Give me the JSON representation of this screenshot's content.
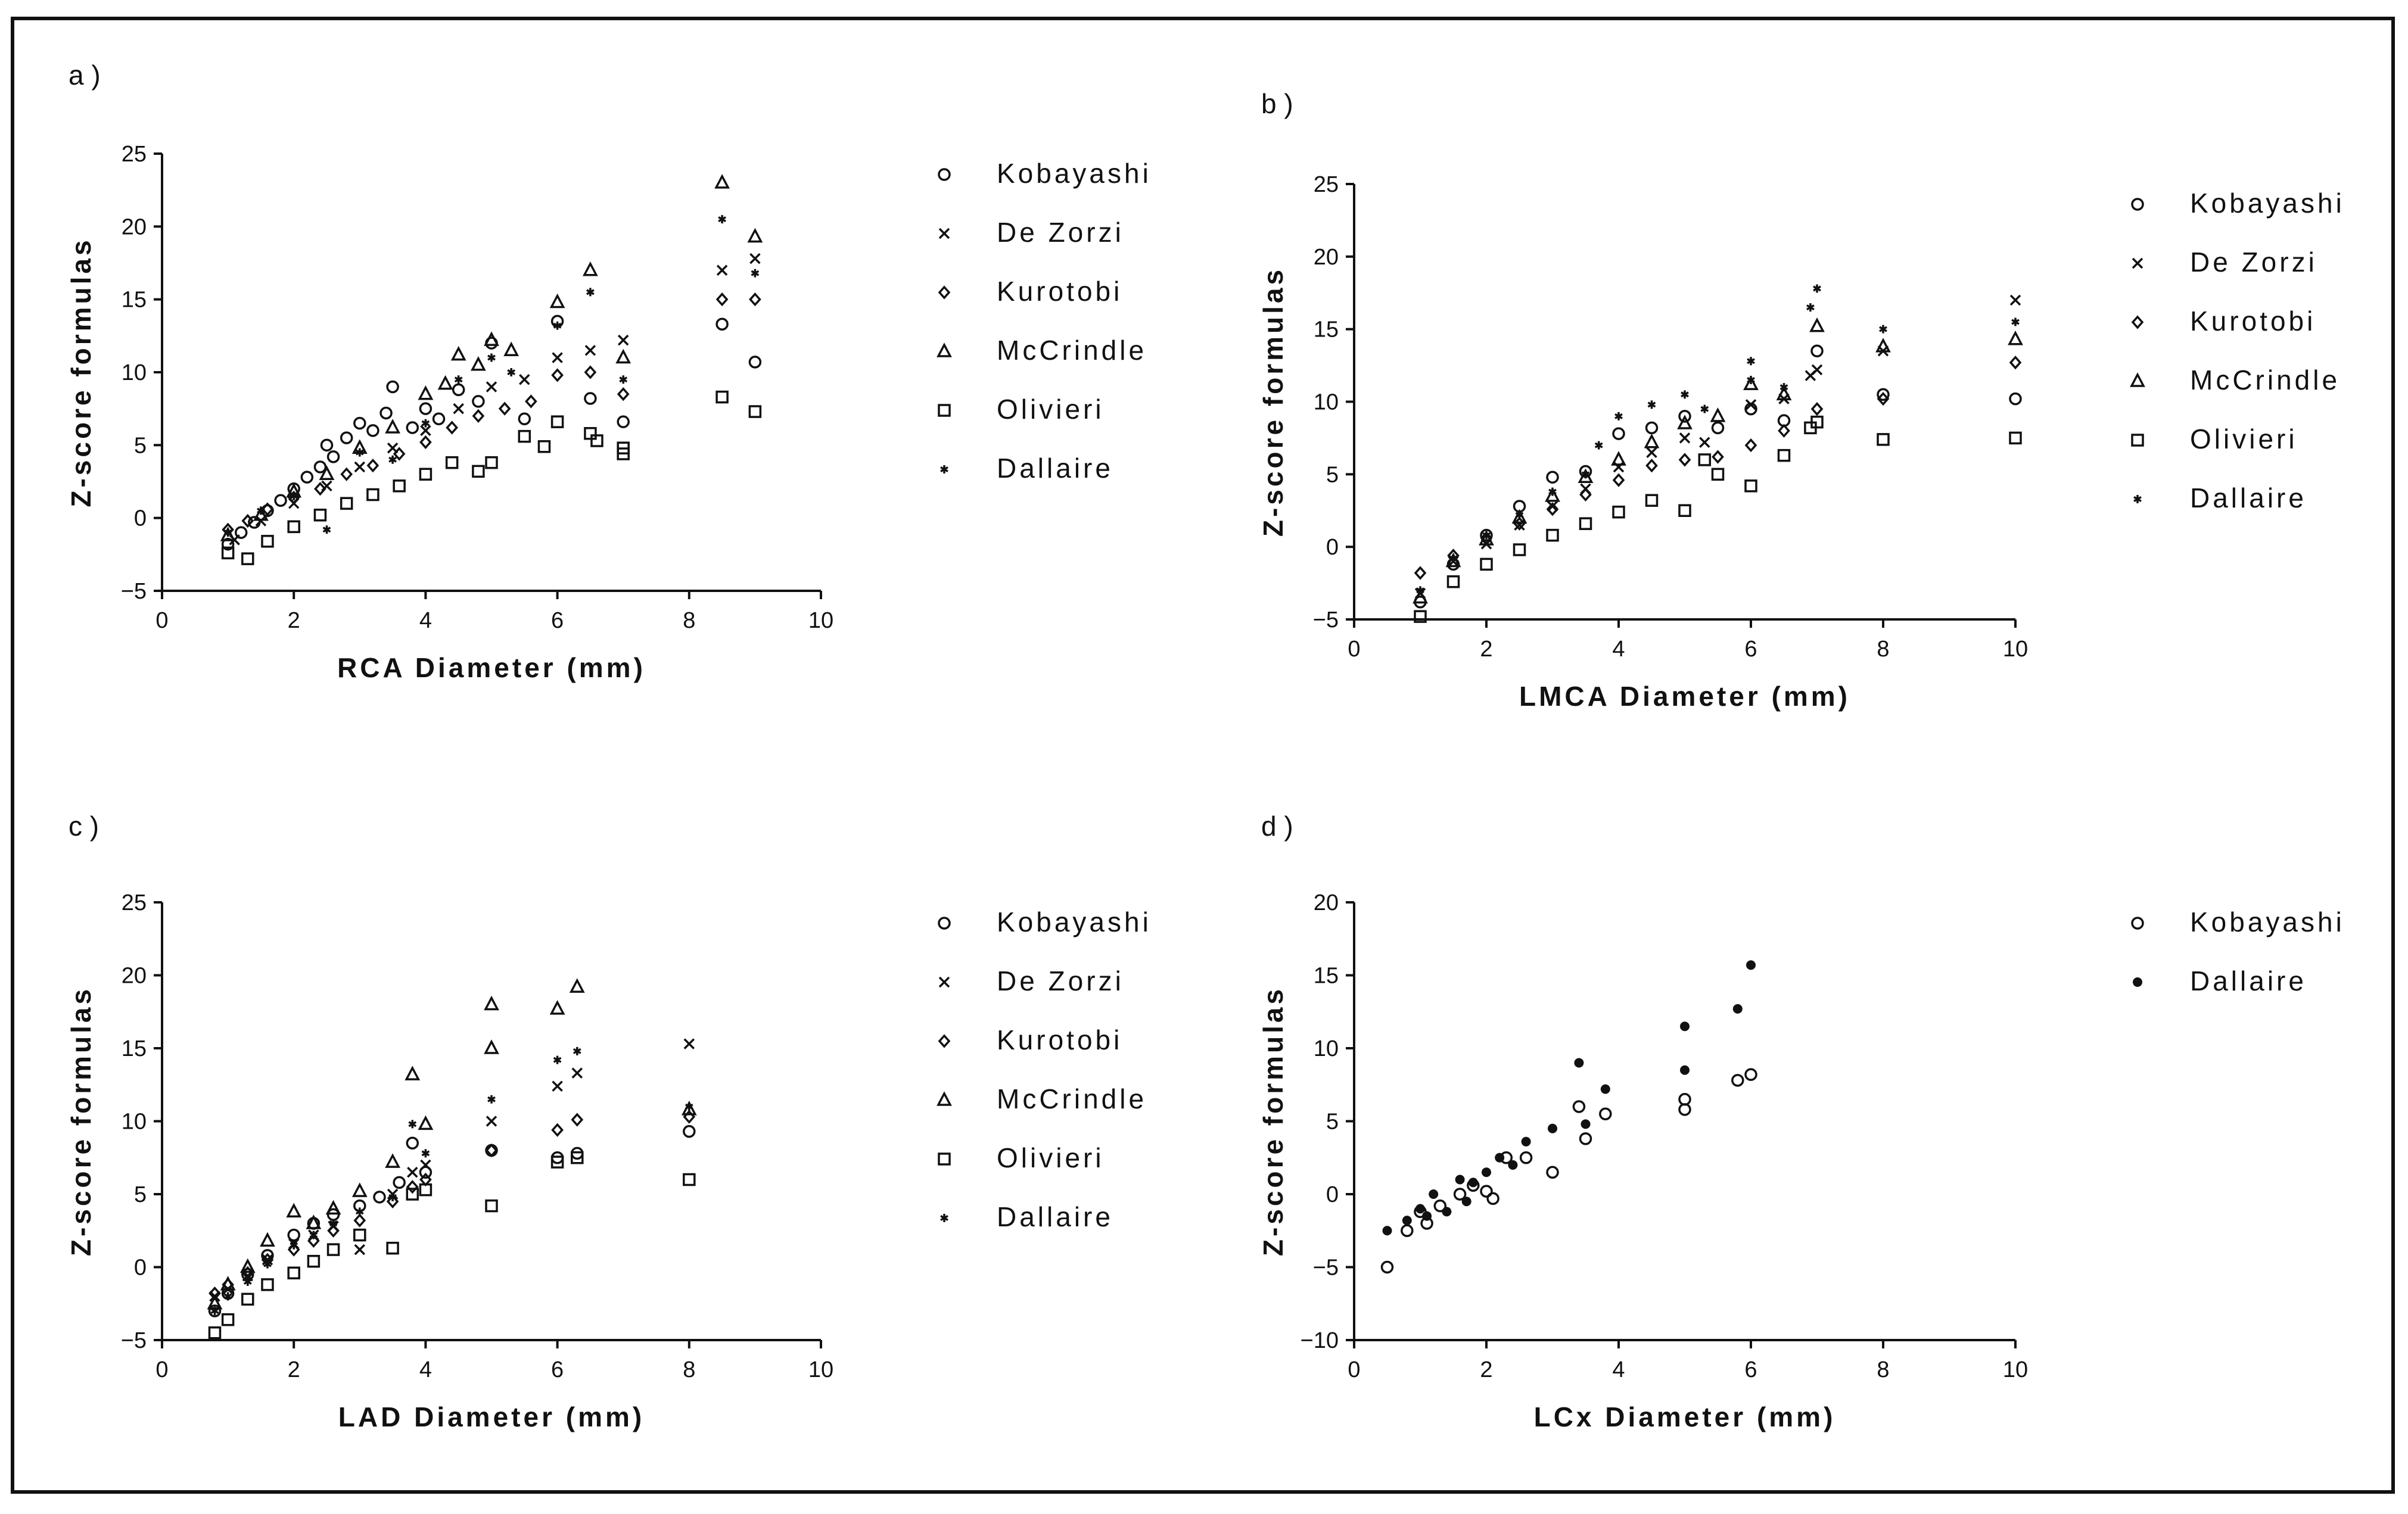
{
  "colors": {
    "background": "#ffffff",
    "ink": "#111111"
  },
  "chart_data": [
    {
      "id": "a",
      "panel_label": "a)",
      "type": "scatter",
      "xlabel": "RCA Diameter (mm)",
      "ylabel": "Z-score formulas",
      "xlim": [
        0,
        10
      ],
      "ylim": [
        -5,
        25
      ],
      "xticks": [
        0,
        2,
        4,
        6,
        8,
        10
      ],
      "yticks": [
        -5,
        0,
        5,
        10,
        15,
        20,
        25
      ],
      "grid": false,
      "legend_position": "right",
      "series": [
        {
          "name": "Kobayashi",
          "marker": "circle",
          "x": [
            1.0,
            1.2,
            1.4,
            1.6,
            1.8,
            2.0,
            2.2,
            2.4,
            2.5,
            2.6,
            2.8,
            3.0,
            3.2,
            3.4,
            3.5,
            3.8,
            4.0,
            4.2,
            4.5,
            4.8,
            5.0,
            5.5,
            6.0,
            6.5,
            7.0,
            8.5,
            9.0
          ],
          "y": [
            -1.8,
            -1.0,
            -0.3,
            0.5,
            1.2,
            2.0,
            2.8,
            3.5,
            5.0,
            4.2,
            5.5,
            6.5,
            6.0,
            7.2,
            9.0,
            6.2,
            7.5,
            6.8,
            8.8,
            8.0,
            12.0,
            6.8,
            13.5,
            8.2,
            6.6,
            13.3,
            10.7
          ]
        },
        {
          "name": "De Zorzi",
          "marker": "cross",
          "x": [
            1.1,
            1.5,
            2.0,
            2.5,
            3.0,
            3.5,
            4.0,
            4.5,
            5.0,
            5.5,
            6.0,
            6.5,
            7.0,
            8.5,
            9.0
          ],
          "y": [
            -1.5,
            -0.2,
            1.0,
            2.2,
            3.5,
            4.8,
            6.0,
            7.5,
            9.0,
            9.5,
            11.0,
            11.5,
            12.2,
            17.0,
            17.8
          ]
        },
        {
          "name": "Kurotobi",
          "marker": "diamond",
          "x": [
            1.0,
            1.3,
            1.6,
            2.0,
            2.4,
            2.8,
            3.2,
            3.6,
            4.0,
            4.4,
            4.8,
            5.2,
            5.6,
            6.0,
            6.5,
            7.0,
            8.5,
            9.0
          ],
          "y": [
            -0.8,
            -0.2,
            0.6,
            1.4,
            2.0,
            3.0,
            3.6,
            4.4,
            5.2,
            6.2,
            7.0,
            7.5,
            8.0,
            9.8,
            10.0,
            8.5,
            15.0,
            15.0
          ]
        },
        {
          "name": "McCrindle",
          "marker": "triangle",
          "x": [
            1.0,
            1.5,
            2.0,
            2.5,
            3.0,
            3.5,
            4.0,
            4.3,
            4.5,
            4.8,
            5.0,
            5.3,
            6.0,
            6.5,
            7.0,
            8.5,
            9.0
          ],
          "y": [
            -1.2,
            0.2,
            1.8,
            3.0,
            4.8,
            6.2,
            8.5,
            9.2,
            11.2,
            10.5,
            12.2,
            11.5,
            14.8,
            17.0,
            11.0,
            23.0,
            19.3
          ]
        },
        {
          "name": "Olivieri",
          "marker": "square",
          "x": [
            1.0,
            1.3,
            1.6,
            2.0,
            2.4,
            2.8,
            3.2,
            3.6,
            4.0,
            4.4,
            4.8,
            5.0,
            5.5,
            5.8,
            6.0,
            6.5,
            6.6,
            7.0,
            7.0,
            8.5,
            9.0
          ],
          "y": [
            -2.4,
            -2.8,
            -1.6,
            -0.6,
            0.2,
            1.0,
            1.6,
            2.2,
            3.0,
            3.8,
            3.2,
            3.8,
            5.6,
            4.9,
            6.6,
            5.8,
            5.3,
            4.8,
            4.4,
            8.3,
            7.3
          ]
        },
        {
          "name": "Dallaire",
          "marker": "asterisk",
          "x": [
            1.0,
            1.5,
            2.0,
            2.5,
            3.0,
            3.5,
            4.0,
            4.5,
            5.0,
            5.3,
            6.0,
            6.5,
            7.0,
            8.5,
            9.0
          ],
          "y": [
            -1.0,
            0.5,
            1.5,
            -0.8,
            4.5,
            4.0,
            6.5,
            9.5,
            11.0,
            10.0,
            13.2,
            15.5,
            9.5,
            20.5,
            16.8
          ]
        }
      ]
    },
    {
      "id": "b",
      "panel_label": "b)",
      "type": "scatter",
      "xlabel": "LMCA Diameter (mm)",
      "ylabel": "Z-score formulas",
      "xlim": [
        0,
        10
      ],
      "ylim": [
        -5,
        25
      ],
      "xticks": [
        0,
        2,
        4,
        6,
        8,
        10
      ],
      "yticks": [
        -5,
        0,
        5,
        10,
        15,
        20,
        25
      ],
      "grid": false,
      "legend_position": "right",
      "series": [
        {
          "name": "Kobayashi",
          "marker": "circle",
          "x": [
            1.0,
            1.5,
            2.0,
            2.5,
            3.0,
            3.5,
            4.0,
            4.5,
            5.0,
            5.5,
            6.0,
            6.5,
            7.0,
            8.0,
            10.0
          ],
          "y": [
            -3.8,
            -1.2,
            0.8,
            2.8,
            4.8,
            5.2,
            7.8,
            8.2,
            9.0,
            8.2,
            9.5,
            8.7,
            13.5,
            10.5,
            10.2
          ]
        },
        {
          "name": "De Zorzi",
          "marker": "cross",
          "x": [
            1.0,
            1.5,
            2.0,
            2.5,
            3.0,
            3.5,
            4.0,
            4.5,
            5.0,
            5.3,
            6.0,
            6.5,
            6.9,
            7.0,
            8.0,
            10.0
          ],
          "y": [
            -3.2,
            -1.0,
            0.2,
            1.5,
            2.8,
            4.0,
            5.5,
            6.5,
            7.5,
            7.2,
            9.8,
            10.2,
            11.8,
            12.2,
            13.5,
            17.0
          ]
        },
        {
          "name": "Kurotobi",
          "marker": "diamond",
          "x": [
            1.0,
            1.5,
            2.0,
            2.5,
            3.0,
            3.5,
            4.0,
            4.5,
            5.0,
            5.5,
            6.0,
            6.5,
            7.0,
            8.0,
            10.0
          ],
          "y": [
            -1.8,
            -0.6,
            0.6,
            1.6,
            2.6,
            3.6,
            4.6,
            5.6,
            6.0,
            6.2,
            7.0,
            8.0,
            9.5,
            10.2,
            12.7
          ]
        },
        {
          "name": "McCrindle",
          "marker": "triangle",
          "x": [
            1.0,
            1.5,
            2.0,
            2.5,
            3.0,
            3.5,
            4.0,
            4.5,
            5.0,
            5.5,
            6.0,
            6.5,
            7.0,
            8.0,
            10.0
          ],
          "y": [
            -3.5,
            -1.0,
            0.5,
            2.0,
            3.5,
            4.8,
            6.0,
            7.2,
            8.5,
            9.0,
            11.2,
            10.5,
            15.2,
            13.8,
            14.3
          ]
        },
        {
          "name": "Olivieri",
          "marker": "square",
          "x": [
            1.0,
            1.5,
            2.0,
            2.5,
            3.0,
            3.5,
            4.0,
            4.5,
            5.0,
            5.3,
            5.5,
            6.0,
            6.5,
            6.9,
            7.0,
            8.0,
            10.0
          ],
          "y": [
            -4.8,
            -2.4,
            -1.2,
            -0.2,
            0.8,
            1.6,
            2.4,
            3.2,
            2.5,
            6.0,
            5.0,
            4.2,
            6.3,
            8.2,
            8.6,
            7.4,
            7.5
          ]
        },
        {
          "name": "Dallaire",
          "marker": "asterisk",
          "x": [
            1.0,
            1.5,
            2.0,
            2.5,
            3.0,
            3.5,
            3.7,
            4.0,
            4.5,
            5.0,
            5.3,
            6.0,
            6.0,
            6.5,
            6.9,
            7.0,
            8.0,
            10.0
          ],
          "y": [
            -3.0,
            -0.8,
            0.8,
            2.2,
            3.8,
            5.0,
            7.0,
            9.0,
            9.8,
            10.5,
            9.5,
            12.8,
            11.5,
            11.0,
            16.5,
            17.8,
            15.0,
            15.5
          ]
        }
      ]
    },
    {
      "id": "c",
      "panel_label": "c)",
      "type": "scatter",
      "xlabel": "LAD Diameter (mm)",
      "ylabel": "Z-score formulas",
      "xlim": [
        0,
        10
      ],
      "ylim": [
        -5,
        25
      ],
      "xticks": [
        0,
        2,
        4,
        6,
        8,
        10
      ],
      "yticks": [
        -5,
        0,
        5,
        10,
        15,
        20,
        25
      ],
      "grid": false,
      "legend_position": "right",
      "series": [
        {
          "name": "Kobayashi",
          "marker": "circle",
          "x": [
            0.8,
            1.0,
            1.3,
            1.6,
            2.0,
            2.3,
            2.6,
            3.0,
            3.3,
            3.6,
            3.8,
            4.0,
            5.0,
            6.0,
            6.3,
            8.0
          ],
          "y": [
            -3.0,
            -1.8,
            -0.5,
            0.8,
            2.2,
            3.0,
            3.6,
            4.2,
            4.8,
            5.8,
            8.5,
            6.5,
            8.0,
            7.5,
            7.8,
            9.3
          ]
        },
        {
          "name": "De Zorzi",
          "marker": "cross",
          "x": [
            0.8,
            1.0,
            1.3,
            1.6,
            2.0,
            2.3,
            2.6,
            3.0,
            3.5,
            3.8,
            4.0,
            5.0,
            6.0,
            6.3,
            8.0
          ],
          "y": [
            -2.0,
            -1.5,
            -0.6,
            0.5,
            1.6,
            2.2,
            2.8,
            1.2,
            5.0,
            6.5,
            7.0,
            10.0,
            12.4,
            13.3,
            15.3
          ]
        },
        {
          "name": "Kurotobi",
          "marker": "diamond",
          "x": [
            0.8,
            1.0,
            1.3,
            1.6,
            2.0,
            2.3,
            2.6,
            3.0,
            3.5,
            3.8,
            4.0,
            5.0,
            6.0,
            6.3,
            8.0
          ],
          "y": [
            -1.8,
            -1.2,
            -0.4,
            0.5,
            1.2,
            1.8,
            2.5,
            3.2,
            4.5,
            5.5,
            6.0,
            8.0,
            9.4,
            10.1,
            10.3
          ]
        },
        {
          "name": "McCrindle",
          "marker": "triangle",
          "x": [
            0.8,
            1.0,
            1.3,
            1.6,
            2.0,
            2.3,
            2.6,
            3.0,
            3.5,
            3.8,
            4.0,
            5.0,
            5.0,
            6.0,
            6.3,
            8.0
          ],
          "y": [
            -2.5,
            -1.2,
            0.0,
            1.8,
            3.8,
            3.0,
            4.0,
            5.2,
            7.2,
            13.2,
            9.8,
            18.0,
            15.0,
            17.7,
            19.2,
            10.8
          ]
        },
        {
          "name": "Olivieri",
          "marker": "square",
          "x": [
            0.8,
            1.0,
            1.3,
            1.6,
            2.0,
            2.3,
            2.6,
            3.0,
            3.5,
            3.8,
            4.0,
            5.0,
            6.0,
            6.3,
            8.0
          ],
          "y": [
            -4.5,
            -3.6,
            -2.2,
            -1.2,
            -0.4,
            0.4,
            1.2,
            2.2,
            1.3,
            5.0,
            5.3,
            4.2,
            7.2,
            7.5,
            6.0
          ]
        },
        {
          "name": "Dallaire",
          "marker": "asterisk",
          "x": [
            0.8,
            1.0,
            1.3,
            1.6,
            2.0,
            2.3,
            2.6,
            3.0,
            3.5,
            3.8,
            4.0,
            5.0,
            6.0,
            6.3,
            8.0
          ],
          "y": [
            -3.0,
            -2.0,
            -1.0,
            0.2,
            1.5,
            2.2,
            3.0,
            3.8,
            4.8,
            9.8,
            7.8,
            11.5,
            14.2,
            14.8,
            11.0
          ]
        }
      ]
    },
    {
      "id": "d",
      "panel_label": "d)",
      "type": "scatter",
      "xlabel": "LCx Diameter (mm)",
      "ylabel": "Z-score formulas",
      "xlim": [
        0,
        10
      ],
      "ylim": [
        -10,
        20
      ],
      "xticks": [
        0,
        2,
        4,
        6,
        8,
        10
      ],
      "yticks": [
        -10,
        -5,
        0,
        5,
        10,
        15,
        20
      ],
      "grid": false,
      "legend_position": "right",
      "series": [
        {
          "name": "Kobayashi",
          "marker": "circle",
          "x": [
            0.5,
            0.8,
            1.0,
            1.1,
            1.3,
            1.6,
            1.8,
            2.0,
            2.1,
            2.3,
            2.6,
            3.0,
            3.4,
            3.5,
            3.8,
            5.0,
            5.0,
            5.8,
            6.0
          ],
          "y": [
            -5.0,
            -2.5,
            -1.2,
            -2.0,
            -0.8,
            0.0,
            0.6,
            0.2,
            -0.3,
            2.5,
            2.5,
            1.5,
            6.0,
            3.8,
            5.5,
            6.5,
            5.8,
            7.8,
            8.2
          ]
        },
        {
          "name": "Dallaire",
          "marker": "dot",
          "x": [
            0.5,
            0.8,
            1.0,
            1.1,
            1.2,
            1.4,
            1.6,
            1.7,
            1.8,
            2.0,
            2.2,
            2.4,
            2.6,
            3.0,
            3.4,
            3.5,
            3.8,
            5.0,
            5.0,
            5.8,
            6.0
          ],
          "y": [
            -2.5,
            -1.8,
            -1.0,
            -1.5,
            0.0,
            -1.2,
            1.0,
            -0.5,
            0.8,
            1.5,
            2.5,
            2.0,
            3.6,
            4.5,
            9.0,
            4.8,
            7.2,
            11.5,
            8.5,
            12.7,
            15.7
          ]
        }
      ]
    }
  ]
}
